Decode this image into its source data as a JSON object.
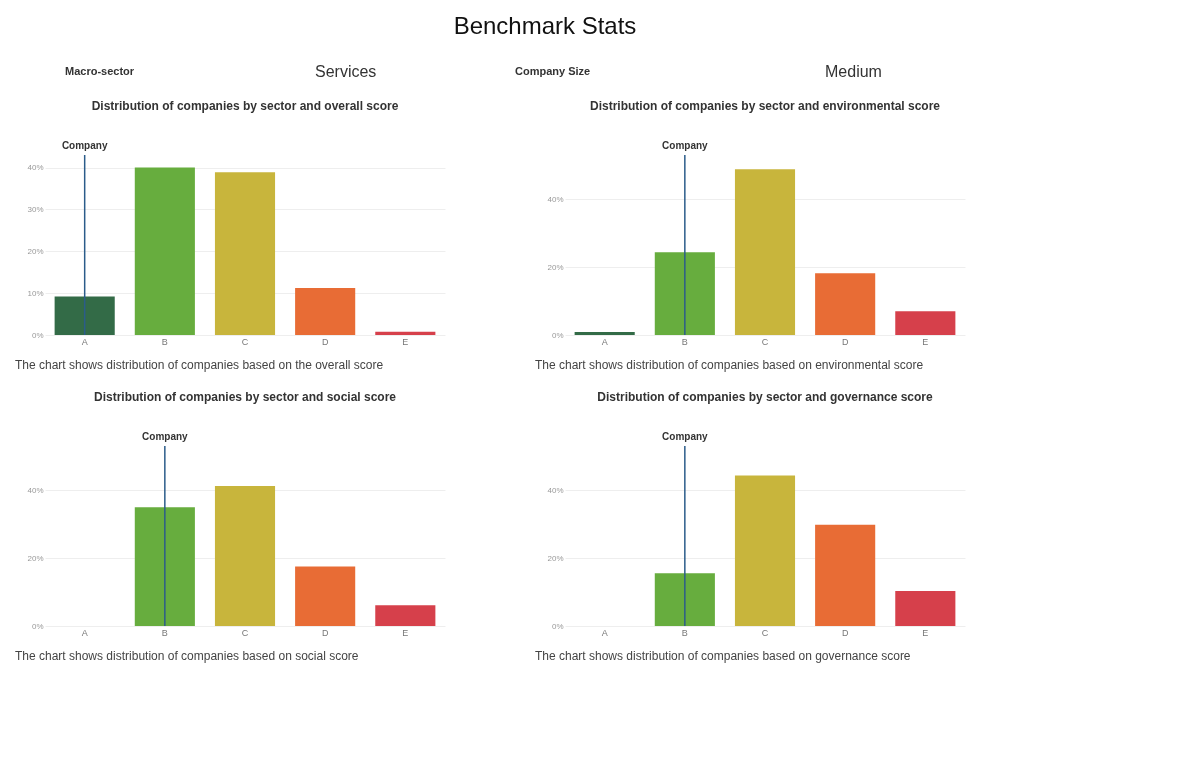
{
  "chart_data": [
    {
      "type": "other",
      "title": "Benchmark Stats",
      "annotations": [
        "Macro-sector",
        "Services",
        "Company Size",
        "Medium"
      ]
    },
    {
      "type": "bar",
      "title": "Distribution of companies by sector and overall score",
      "categories": [
        "A",
        "B",
        "C",
        "D",
        "E"
      ],
      "values": [
        9.2,
        40,
        38.9,
        11.2,
        0.8
      ],
      "colors": [
        "#336b47",
        "#67ad3e",
        "#c8b53c",
        "#e86c35",
        "#d6404b"
      ],
      "ylim": [
        0,
        43
      ],
      "yticks": [
        {
          "value": 0,
          "label": "0%"
        },
        {
          "value": 10,
          "label": "10%"
        },
        {
          "value": 20,
          "label": "20%"
        },
        {
          "value": 30,
          "label": "30%"
        },
        {
          "value": 40,
          "label": "40%"
        }
      ],
      "grid": "y",
      "legend": false,
      "ref_lines": [
        {
          "axis": "x",
          "value": "A",
          "label": "Company",
          "color": "#2b5c8a"
        }
      ],
      "annotations": [
        "The chart shows distribution of companies based on the overall score"
      ]
    },
    {
      "type": "bar",
      "title": "Distribution of companies by sector and environmental score",
      "categories": [
        "A",
        "B",
        "C",
        "D",
        "E"
      ],
      "values": [
        0.9,
        24.4,
        48.8,
        18.2,
        7.0
      ],
      "colors": [
        "#336b47",
        "#67ad3e",
        "#c8b53c",
        "#e86c35",
        "#d6404b"
      ],
      "ylim": [
        0,
        53
      ],
      "yticks": [
        {
          "value": 0,
          "label": "0%"
        },
        {
          "value": 20,
          "label": "20%"
        },
        {
          "value": 40,
          "label": "40%"
        }
      ],
      "grid": "y",
      "legend": false,
      "ref_lines": [
        {
          "axis": "x",
          "value": "B",
          "label": "Company",
          "color": "#2b5c8a"
        }
      ],
      "annotations": [
        "The chart shows distribution of companies based on environmental score"
      ]
    },
    {
      "type": "bar",
      "title": "Distribution of companies by sector and social score",
      "categories": [
        "A",
        "B",
        "C",
        "D",
        "E"
      ],
      "values": [
        0,
        35.0,
        41.2,
        17.5,
        6.1
      ],
      "colors": [
        "#336b47",
        "#67ad3e",
        "#c8b53c",
        "#e86c35",
        "#d6404b"
      ],
      "ylim": [
        0,
        53
      ],
      "yticks": [
        {
          "value": 0,
          "label": "0%"
        },
        {
          "value": 20,
          "label": "20%"
        },
        {
          "value": 40,
          "label": "40%"
        }
      ],
      "grid": "y",
      "legend": false,
      "ref_lines": [
        {
          "axis": "x",
          "value": "B",
          "label": "Company",
          "color": "#2b5c8a"
        }
      ],
      "annotations": [
        "The chart shows distribution of companies based on social score"
      ]
    },
    {
      "type": "bar",
      "title": "Distribution of companies by sector and governance score",
      "categories": [
        "A",
        "B",
        "C",
        "D",
        "E"
      ],
      "values": [
        0,
        15.5,
        44.3,
        29.8,
        10.3
      ],
      "colors": [
        "#336b47",
        "#67ad3e",
        "#c8b53c",
        "#e86c35",
        "#d6404b"
      ],
      "ylim": [
        0,
        53
      ],
      "yticks": [
        {
          "value": 0,
          "label": "0%"
        },
        {
          "value": 20,
          "label": "20%"
        },
        {
          "value": 40,
          "label": "40%"
        }
      ],
      "grid": "y",
      "legend": false,
      "ref_lines": [
        {
          "axis": "x",
          "value": "B",
          "label": "Company",
          "color": "#2b5c8a"
        }
      ],
      "annotations": [
        "The chart shows distribution of companies based on governance score"
      ]
    }
  ]
}
